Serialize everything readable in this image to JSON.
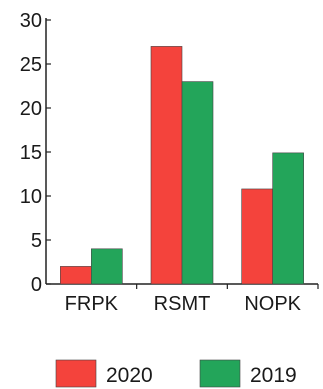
{
  "chart_data": {
    "type": "bar",
    "categories": [
      "FRPK",
      "RSMT",
      "NOPK"
    ],
    "series": [
      {
        "name": "2020",
        "values": [
          2,
          27,
          10.8
        ],
        "color": "#f4433c"
      },
      {
        "name": "2019",
        "values": [
          4,
          23,
          14.9
        ],
        "color": "#23a55a"
      }
    ],
    "ylim": [
      0,
      30
    ],
    "yticks": [
      0,
      5,
      10,
      15,
      20,
      25,
      30
    ],
    "grid": false,
    "legend_position": "bottom"
  }
}
